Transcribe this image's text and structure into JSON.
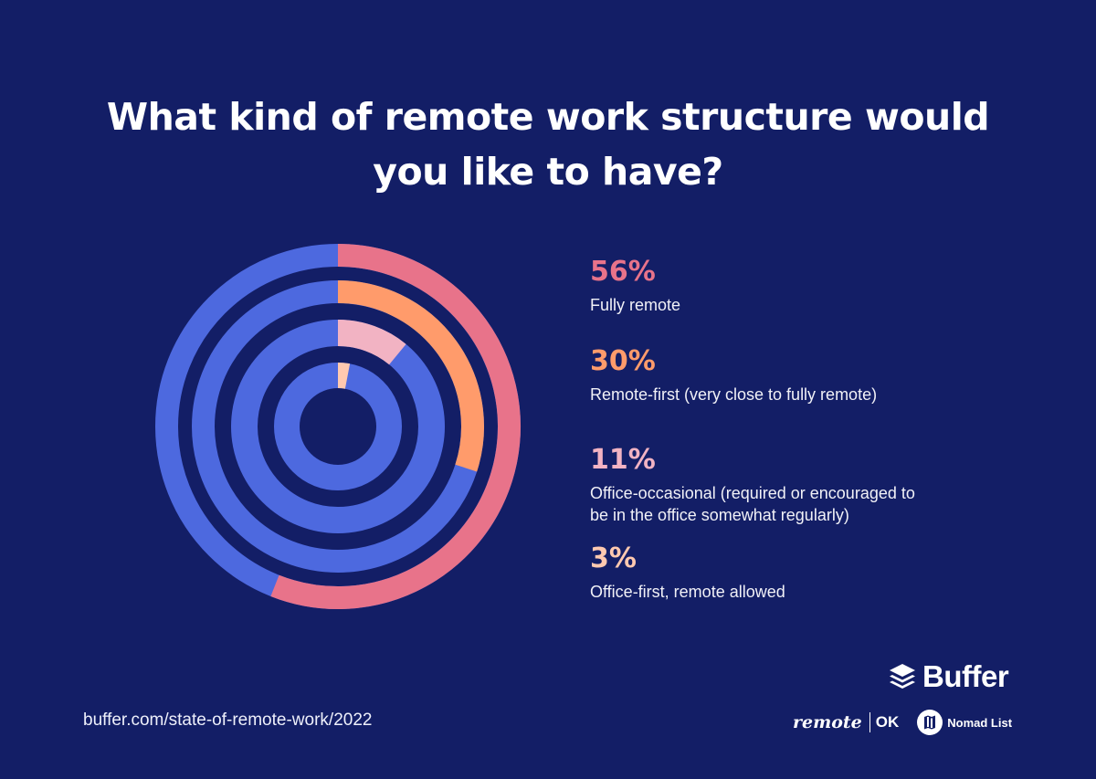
{
  "title": {
    "line1": "What kind of remote work structure would",
    "line2": "you like to have?"
  },
  "chart_data": {
    "type": "radial-bar",
    "title": "What kind of remote work structure would you like to have?",
    "categories": [
      "Fully remote",
      "Remote-first (very close to fully remote)",
      "Office-occasional (required or encouraged to be in the office somewhat regularly)",
      "Office-first, remote allowed"
    ],
    "values": [
      56,
      30,
      11,
      3
    ],
    "unit": "%",
    "colors": [
      "#e8738a",
      "#ff9b6b",
      "#f2b3c3",
      "#ffc9b0"
    ],
    "track_color": "#4d69df",
    "ring_order": "outer-to-inner"
  },
  "legend": [
    {
      "pct": "56%",
      "label": "Fully remote",
      "color": "#e8738a"
    },
    {
      "pct": "30%",
      "label": "Remote-first (very close to fully remote)",
      "color": "#ff9b6b"
    },
    {
      "pct": "11%",
      "label": "Office-occasional (required or encouraged to be in the office somewhat regularly)",
      "color": "#f2b3c3"
    },
    {
      "pct": "3%",
      "label": "Office-first, remote allowed",
      "color": "#ffc9b0"
    }
  ],
  "footer": {
    "url": "buffer.com/state-of-remote-work/2022",
    "brand": "Buffer",
    "partner1_word": "remote",
    "partner1_suffix": "OK",
    "partner2": "Nomad List"
  },
  "colors": {
    "background": "#131e66",
    "track": "#4d69df"
  }
}
